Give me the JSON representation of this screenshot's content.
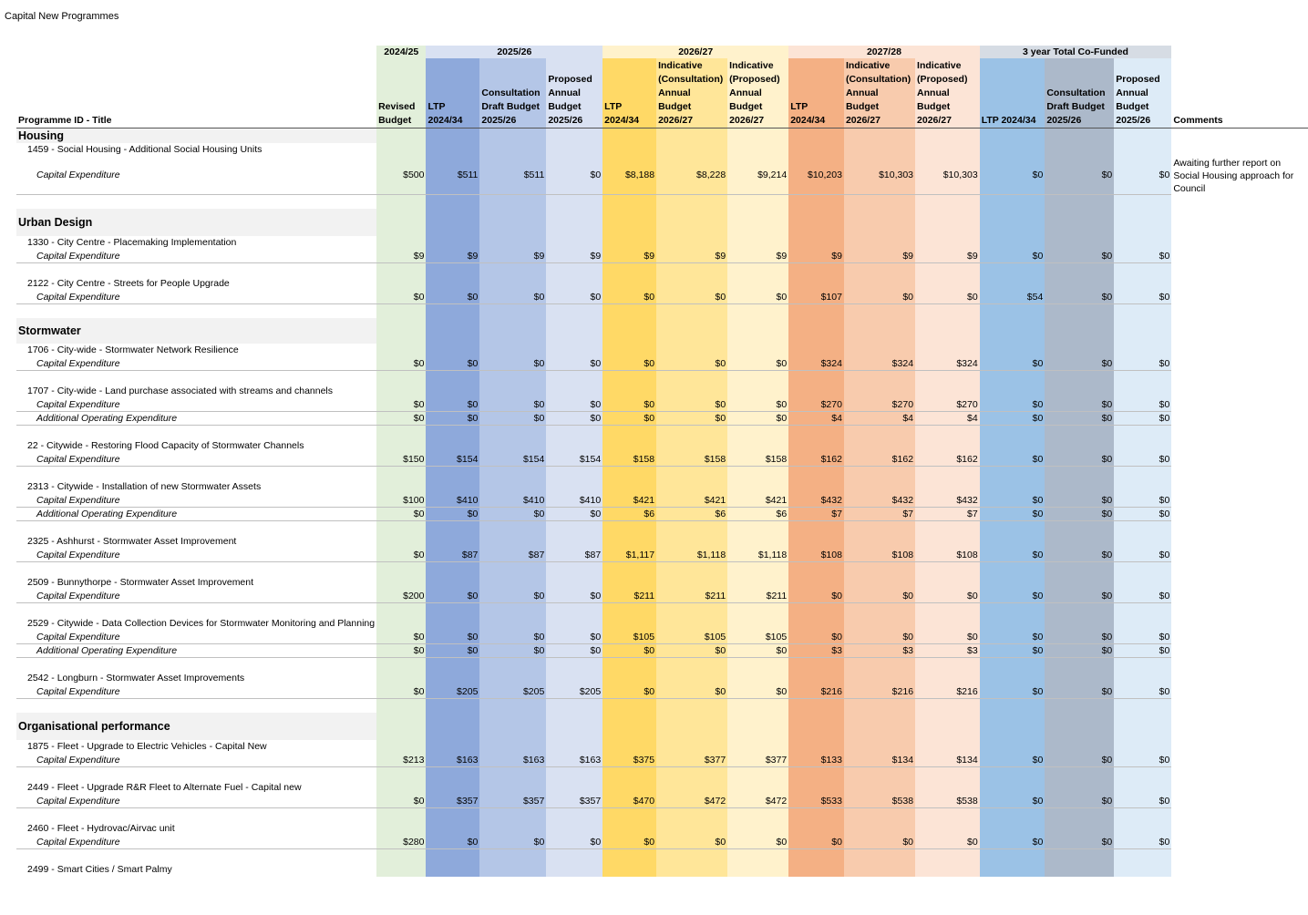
{
  "page_title": "Capital New Programmes",
  "group_headers": [
    {
      "label": "",
      "span": 1
    },
    {
      "label": "2024/25",
      "span": 1
    },
    {
      "label": "2025/26",
      "span": 3
    },
    {
      "label": "2026/27",
      "span": 3
    },
    {
      "label": "2027/28",
      "span": 3
    },
    {
      "label": "3 year Total Co-Funded",
      "span": 3
    },
    {
      "label": "",
      "span": 1
    }
  ],
  "column_headers": [
    "Programme ID - Title",
    "Revised Budget",
    "LTP 2024/34",
    "Consultation Draft Budget 2025/26",
    "Proposed Annual Budget 2025/26",
    "LTP 2024/34",
    "Indicative (Consultation) Annual Budget 2026/27",
    "Indicative (Proposed) Annual Budget 2026/27",
    "LTP 2024/34",
    "Indicative (Consultation) Annual Budget 2026/27",
    "Indicative (Proposed) Annual Budget 2026/27",
    "LTP 2024/34",
    "Consultation Draft Budget 2025/26",
    "Proposed Annual Budget 2025/26",
    "Comments"
  ],
  "rows": [
    {
      "type": "section",
      "title": "Housing",
      "h": 16
    },
    {
      "type": "prog",
      "title": "1459 - Social Housing - Additional Social Housing Units",
      "h": 15
    },
    {
      "type": "line",
      "title": "Capital Expenditure",
      "values": [
        "$500",
        "$511",
        "$511",
        "$0",
        "$8,188",
        "$8,228",
        "$9,214",
        "$10,203",
        "$10,303",
        "$10,303",
        "$0",
        "$0",
        "$0"
      ],
      "comment": "Awaiting further report on Social Housing approach for Council",
      "h": 30
    },
    {
      "type": "spacer",
      "h": 15
    },
    {
      "type": "section",
      "title": "Urban Design",
      "h": 30
    },
    {
      "type": "prog",
      "title": "1330 - City Centre - Placemaking Implementation",
      "h": 15
    },
    {
      "type": "line",
      "title": "Capital Expenditure",
      "values": [
        "$9",
        "$9",
        "$9",
        "$9",
        "$9",
        "$9",
        "$9",
        "$9",
        "$9",
        "$9",
        "$0",
        "$0",
        "$0"
      ],
      "h": 15
    },
    {
      "type": "spacer",
      "h": 15
    },
    {
      "type": "prog",
      "title": "2122 - City Centre - Streets for People Upgrade",
      "h": 15
    },
    {
      "type": "line",
      "title": "Capital Expenditure",
      "values": [
        "$0",
        "$0",
        "$0",
        "$0",
        "$0",
        "$0",
        "$0",
        "$107",
        "$0",
        "$0",
        "$54",
        "$0",
        "$0"
      ],
      "h": 15
    },
    {
      "type": "spacer",
      "h": 15
    },
    {
      "type": "section",
      "title": "Stormwater",
      "h": 28
    },
    {
      "type": "prog",
      "title": "1706 - City-wide - Stormwater Network Resilience",
      "h": 15
    },
    {
      "type": "line",
      "title": "Capital Expenditure",
      "values": [
        "$0",
        "$0",
        "$0",
        "$0",
        "$0",
        "$0",
        "$0",
        "$324",
        "$324",
        "$324",
        "$0",
        "$0",
        "$0"
      ],
      "h": 15
    },
    {
      "type": "spacer",
      "h": 15
    },
    {
      "type": "prog",
      "title": "1707 - City-wide - Land purchase associated with streams and channels",
      "h": 15
    },
    {
      "type": "line",
      "title": "Capital Expenditure",
      "values": [
        "$0",
        "$0",
        "$0",
        "$0",
        "$0",
        "$0",
        "$0",
        "$270",
        "$270",
        "$270",
        "$0",
        "$0",
        "$0"
      ],
      "h": 15
    },
    {
      "type": "line",
      "title": "Additional Operating Expenditure",
      "values": [
        "$0",
        "$0",
        "$0",
        "$0",
        "$0",
        "$0",
        "$0",
        "$4",
        "$4",
        "$4",
        "$0",
        "$0",
        "$0"
      ],
      "h": 15
    },
    {
      "type": "spacer",
      "h": 15
    },
    {
      "type": "prog",
      "title": "22 - Citywide - Restoring Flood Capacity of Stormwater Channels",
      "h": 15
    },
    {
      "type": "line",
      "title": "Capital Expenditure",
      "values": [
        "$150",
        "$154",
        "$154",
        "$154",
        "$158",
        "$158",
        "$158",
        "$162",
        "$162",
        "$162",
        "$0",
        "$0",
        "$0"
      ],
      "h": 15
    },
    {
      "type": "spacer",
      "h": 15
    },
    {
      "type": "prog",
      "title": "2313 - Citywide - Installation of new Stormwater Assets",
      "h": 15
    },
    {
      "type": "line",
      "title": "Capital Expenditure",
      "values": [
        "$100",
        "$410",
        "$410",
        "$410",
        "$421",
        "$421",
        "$421",
        "$432",
        "$432",
        "$432",
        "$0",
        "$0",
        "$0"
      ],
      "h": 15
    },
    {
      "type": "line",
      "title": "Additional Operating Expenditure",
      "values": [
        "$0",
        "$0",
        "$0",
        "$0",
        "$6",
        "$6",
        "$6",
        "$7",
        "$7",
        "$7",
        "$0",
        "$0",
        "$0"
      ],
      "h": 15
    },
    {
      "type": "spacer",
      "h": 15
    },
    {
      "type": "prog",
      "title": "2325 - Ashhurst - Stormwater Asset Improvement",
      "h": 15
    },
    {
      "type": "line",
      "title": "Capital Expenditure",
      "values": [
        "$0",
        "$87",
        "$87",
        "$87",
        "$1,117",
        "$1,118",
        "$1,118",
        "$108",
        "$108",
        "$108",
        "$0",
        "$0",
        "$0"
      ],
      "h": 15
    },
    {
      "type": "spacer",
      "h": 15
    },
    {
      "type": "prog",
      "title": "2509 - Bunnythorpe - Stormwater Asset Improvement",
      "h": 15
    },
    {
      "type": "line",
      "title": "Capital Expenditure",
      "values": [
        "$200",
        "$0",
        "$0",
        "$0",
        "$211",
        "$211",
        "$211",
        "$0",
        "$0",
        "$0",
        "$0",
        "$0",
        "$0"
      ],
      "h": 15
    },
    {
      "type": "spacer",
      "h": 15
    },
    {
      "type": "prog",
      "title": "2529 - Citywide - Data Collection Devices for Stormwater Monitoring and Planning",
      "h": 15
    },
    {
      "type": "line",
      "title": "Capital Expenditure",
      "values": [
        "$0",
        "$0",
        "$0",
        "$0",
        "$105",
        "$105",
        "$105",
        "$0",
        "$0",
        "$0",
        "$0",
        "$0",
        "$0"
      ],
      "h": 15
    },
    {
      "type": "line",
      "title": "Additional Operating Expenditure",
      "values": [
        "$0",
        "$0",
        "$0",
        "$0",
        "$0",
        "$0",
        "$0",
        "$3",
        "$3",
        "$3",
        "$0",
        "$0",
        "$0"
      ],
      "h": 15
    },
    {
      "type": "spacer",
      "h": 15
    },
    {
      "type": "prog",
      "title": "2542 - Longburn - Stormwater Asset Improvements",
      "h": 15
    },
    {
      "type": "line",
      "title": "Capital Expenditure",
      "values": [
        "$0",
        "$205",
        "$205",
        "$205",
        "$0",
        "$0",
        "$0",
        "$216",
        "$216",
        "$216",
        "$0",
        "$0",
        "$0"
      ],
      "h": 15
    },
    {
      "type": "spacer",
      "h": 15
    },
    {
      "type": "section",
      "title": "Organisational performance",
      "h": 30
    },
    {
      "type": "prog",
      "title": "1875 - Fleet - Upgrade to Electric Vehicles - Capital New",
      "h": 15
    },
    {
      "type": "line",
      "title": "Capital Expenditure",
      "values": [
        "$213",
        "$163",
        "$163",
        "$163",
        "$375",
        "$377",
        "$377",
        "$133",
        "$134",
        "$134",
        "$0",
        "$0",
        "$0"
      ],
      "h": 15
    },
    {
      "type": "spacer",
      "h": 15
    },
    {
      "type": "prog",
      "title": "2449 - Fleet - Upgrade R&R Fleet to Alternate Fuel - Capital new",
      "h": 15
    },
    {
      "type": "line",
      "title": "Capital Expenditure",
      "values": [
        "$0",
        "$357",
        "$357",
        "$357",
        "$470",
        "$472",
        "$472",
        "$533",
        "$538",
        "$538",
        "$0",
        "$0",
        "$0"
      ],
      "h": 15
    },
    {
      "type": "spacer",
      "h": 15
    },
    {
      "type": "prog",
      "title": "2460 - Fleet - Hydrovac/Airvac unit",
      "h": 15
    },
    {
      "type": "line",
      "title": "Capital Expenditure",
      "values": [
        "$280",
        "$0",
        "$0",
        "$0",
        "$0",
        "$0",
        "$0",
        "$0",
        "$0",
        "$0",
        "$0",
        "$0",
        "$0"
      ],
      "h": 15
    },
    {
      "type": "spacer",
      "h": 15
    },
    {
      "type": "prog",
      "title": "2499 - Smart Cities / Smart Palmy",
      "h": 15
    }
  ]
}
